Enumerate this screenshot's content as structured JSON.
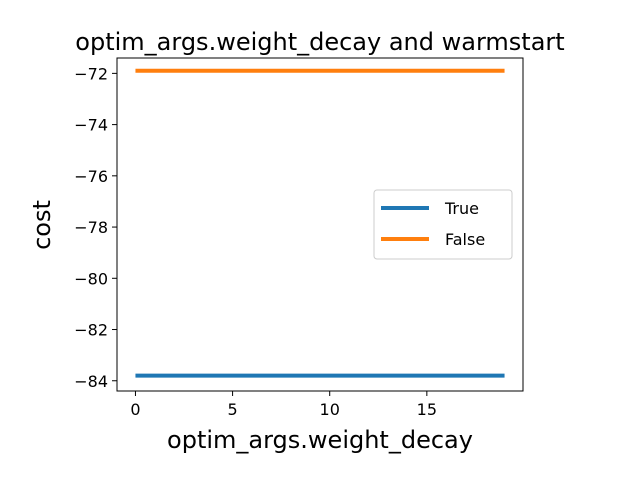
{
  "chart_data": {
    "type": "line",
    "title": "optim_args.weight_decay and warmstart",
    "xlabel": "optim_args.weight_decay",
    "ylabel": "cost",
    "xlim": [
      -0.95,
      19.95
    ],
    "ylim": [
      -84.4,
      -71.4
    ],
    "xticks": [
      0,
      5,
      10,
      15
    ],
    "yticks": [
      -84,
      -82,
      -80,
      -78,
      -76,
      -74,
      -72
    ],
    "ytick_labels": [
      "−84",
      "−82",
      "−80",
      "−78",
      "−76",
      "−74",
      "−72"
    ],
    "grid": false,
    "legend_placement": "center-right",
    "series": [
      {
        "name": "True",
        "color": "#1f77b4",
        "x": [
          0,
          19
        ],
        "y": [
          -83.8,
          -83.8
        ]
      },
      {
        "name": "False",
        "color": "#ff7f0e",
        "x": [
          0,
          19
        ],
        "y": [
          -71.9,
          -71.9
        ]
      }
    ]
  }
}
